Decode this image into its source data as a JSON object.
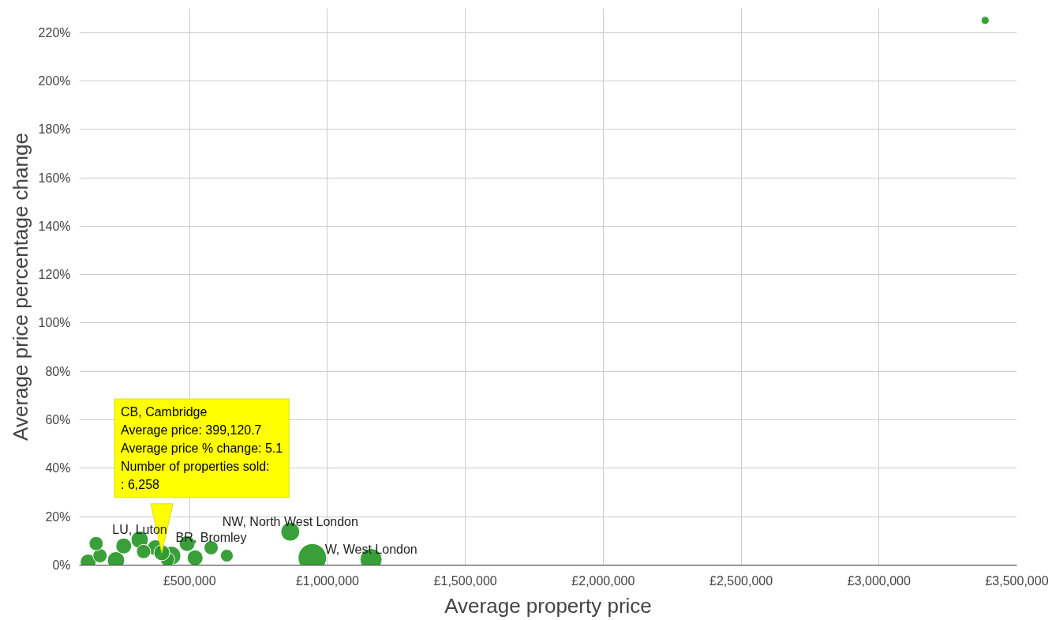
{
  "chart_data": {
    "type": "bubble",
    "xlabel": "Average property price",
    "ylabel": "Average price percentage change",
    "xlim": [
      100000,
      3500000
    ],
    "ylim": [
      0,
      230
    ],
    "xticks": [
      {
        "value": 500000,
        "label": "£500,000"
      },
      {
        "value": 1000000,
        "label": "£1,000,000"
      },
      {
        "value": 1500000,
        "label": "£1,500,000"
      },
      {
        "value": 2000000,
        "label": "£2,000,000"
      },
      {
        "value": 2500000,
        "label": "£2,500,000"
      },
      {
        "value": 3000000,
        "label": "£3,000,000"
      },
      {
        "value": 3500000,
        "label": "£3,500,000"
      }
    ],
    "yticks": [
      {
        "value": 0,
        "label": "0%"
      },
      {
        "value": 20,
        "label": "20%"
      },
      {
        "value": 40,
        "label": "40%"
      },
      {
        "value": 60,
        "label": "60%"
      },
      {
        "value": 80,
        "label": "80%"
      },
      {
        "value": 100,
        "label": "100%"
      },
      {
        "value": 120,
        "label": "120%"
      },
      {
        "value": 140,
        "label": "140%"
      },
      {
        "value": 160,
        "label": "160%"
      },
      {
        "value": 180,
        "label": "180%"
      },
      {
        "value": 200,
        "label": "200%"
      },
      {
        "value": 220,
        "label": "220%"
      }
    ],
    "grid": true,
    "series": [
      {
        "color": "#2e9b2e",
        "x": [
          132000,
          175000,
          233000,
          161000,
          261000,
          319000,
          376000,
          434000,
          491000,
          420000,
          520000,
          333000,
          578000,
          635000,
          399120.7,
          865000,
          945000,
          1158000,
          3385000
        ],
        "values": [
          1.3,
          3.9,
          2.0,
          8.9,
          7.9,
          10.5,
          7.2,
          3.9,
          8.9,
          2.3,
          3.0,
          5.6,
          7.2,
          3.9,
          5.1,
          13.8,
          3.0,
          2.3,
          225
        ],
        "sizes": [
          0.31,
          0.25,
          0.37,
          0.25,
          0.31,
          0.37,
          0.31,
          0.44,
          0.31,
          0.25,
          0.31,
          0.25,
          0.25,
          0.2,
          0.31,
          0.44,
          1,
          0.6,
          0.08
        ]
      }
    ],
    "annotations": [
      {
        "text": "NW, North West London",
        "x": 865000,
        "y": 13.8
      },
      {
        "text": "W, West London",
        "x": 1158000,
        "y": 2.3
      },
      {
        "text": "LU, Luton",
        "x": 319000,
        "y": 10.5
      },
      {
        "text": "BR, Bromley",
        "x": 578000,
        "y": 7.2
      },
      {
        "text": "CB, Cambridge\nAverage price: 399,120.7\nAverage price % change: 5.1\nNumber of properties sold:\n: 6,258",
        "x": 399120.7,
        "y": 5.1
      }
    ]
  }
}
